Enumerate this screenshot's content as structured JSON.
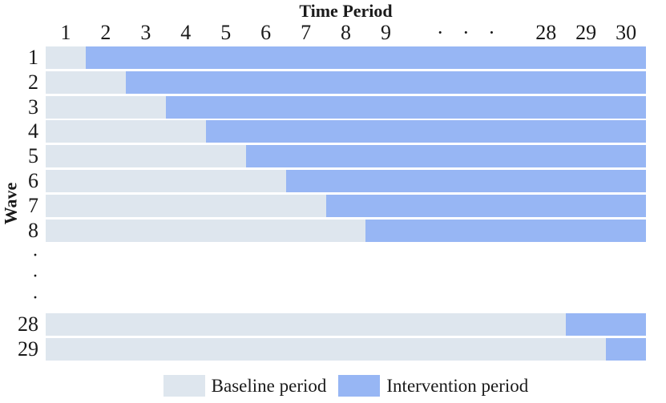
{
  "figure": {
    "title": "Time Period",
    "y_axis_label": "Wave"
  },
  "colors": {
    "baseline": "#dee6ee",
    "intervention": "#97b6f4"
  },
  "legend": {
    "items": [
      {
        "label": "Baseline period",
        "color_key": "baseline"
      },
      {
        "label": "Intervention period",
        "color_key": "intervention"
      }
    ]
  },
  "chart_data": {
    "type": "bar",
    "subtype": "horizontal stacked bars (stepped-wedge design schematic with axis break)",
    "title": "Time Period",
    "xlabel": "Time Period",
    "ylabel": "Wave",
    "time_period_range": [
      1,
      30
    ],
    "axis_break_note": "time periods 10-27 and waves 9-27 are collapsed into ellipsis dots",
    "total_slots": 15,
    "x_slots": [
      {
        "label": "1",
        "span": 1
      },
      {
        "label": "2",
        "span": 1
      },
      {
        "label": "3",
        "span": 1
      },
      {
        "label": "4",
        "span": 1
      },
      {
        "label": "5",
        "span": 1
      },
      {
        "label": "6",
        "span": 1
      },
      {
        "label": "7",
        "span": 1
      },
      {
        "label": "8",
        "span": 1
      },
      {
        "label": "9",
        "span": 1
      },
      {
        "label": "· · ·",
        "span": 3,
        "is_break": true
      },
      {
        "label": "28",
        "span": 1
      },
      {
        "label": "29",
        "span": 1
      },
      {
        "label": "30",
        "span": 1
      }
    ],
    "rows": [
      {
        "type": "wave",
        "label": "1",
        "baseline_periods": "1",
        "intervention_periods": "2-30",
        "baseline_slots": 1
      },
      {
        "type": "wave",
        "label": "2",
        "baseline_periods": "1-2",
        "intervention_periods": "3-30",
        "baseline_slots": 2
      },
      {
        "type": "wave",
        "label": "3",
        "baseline_periods": "1-3",
        "intervention_periods": "4-30",
        "baseline_slots": 3
      },
      {
        "type": "wave",
        "label": "4",
        "baseline_periods": "1-4",
        "intervention_periods": "5-30",
        "baseline_slots": 4
      },
      {
        "type": "wave",
        "label": "5",
        "baseline_periods": "1-5",
        "intervention_periods": "6-30",
        "baseline_slots": 5
      },
      {
        "type": "wave",
        "label": "6",
        "baseline_periods": "1-6",
        "intervention_periods": "7-30",
        "baseline_slots": 6
      },
      {
        "type": "wave",
        "label": "7",
        "baseline_periods": "1-7",
        "intervention_periods": "8-30",
        "baseline_slots": 7
      },
      {
        "type": "wave",
        "label": "8",
        "baseline_periods": "1-8",
        "intervention_periods": "9-30",
        "baseline_slots": 8
      },
      {
        "type": "dots",
        "label": "·"
      },
      {
        "type": "dots",
        "label": "·"
      },
      {
        "type": "dots",
        "label": "·"
      },
      {
        "type": "wave",
        "label": "28",
        "baseline_periods": "1-28",
        "intervention_periods": "29-30",
        "baseline_slots": 13
      },
      {
        "type": "wave",
        "label": "29",
        "baseline_periods": "1-29",
        "intervention_periods": "30",
        "baseline_slots": 14
      }
    ],
    "series": [
      {
        "name": "Baseline period",
        "color": "#dee6ee"
      },
      {
        "name": "Intervention period",
        "color": "#97b6f4"
      }
    ],
    "legend_position": "bottom",
    "grid": false
  }
}
